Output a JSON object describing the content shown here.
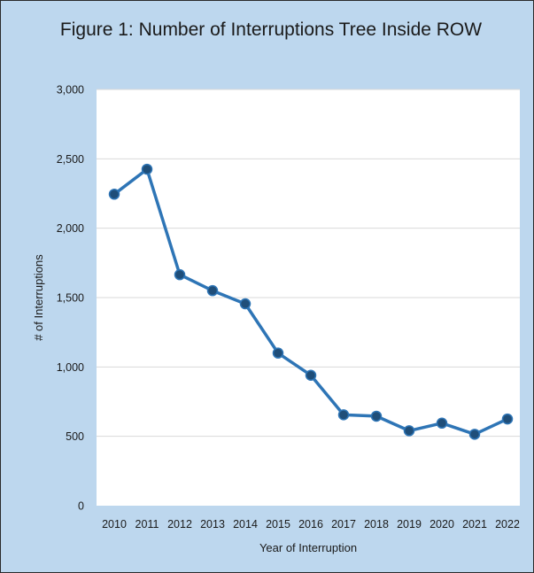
{
  "chart_data": {
    "type": "line",
    "title": "Figure 1: Number of Interruptions Tree Inside ROW",
    "xlabel": "Year of Interruption",
    "ylabel": "# of Interruptions",
    "categories": [
      "2010",
      "2011",
      "2012",
      "2013",
      "2014",
      "2015",
      "2016",
      "2017",
      "2018",
      "2019",
      "2020",
      "2021",
      "2022"
    ],
    "series": [
      {
        "values": [
          2245,
          2425,
          1665,
          1550,
          1455,
          1100,
          940,
          655,
          645,
          540,
          595,
          515,
          625
        ]
      }
    ],
    "ylim": [
      0,
      3000
    ],
    "yticks": [
      0,
      500,
      1000,
      1500,
      2000,
      2500,
      3000
    ],
    "ytick_labels": [
      "0",
      "500",
      "1,000",
      "1,500",
      "2,000",
      "2,500",
      "3,000"
    ],
    "grid": true,
    "colors": {
      "line": "#2e75b6",
      "marker": "#1f4e79",
      "background": "#bdd7ee",
      "plot_area": "#ffffff",
      "gridline": "#d9d9d9"
    }
  }
}
